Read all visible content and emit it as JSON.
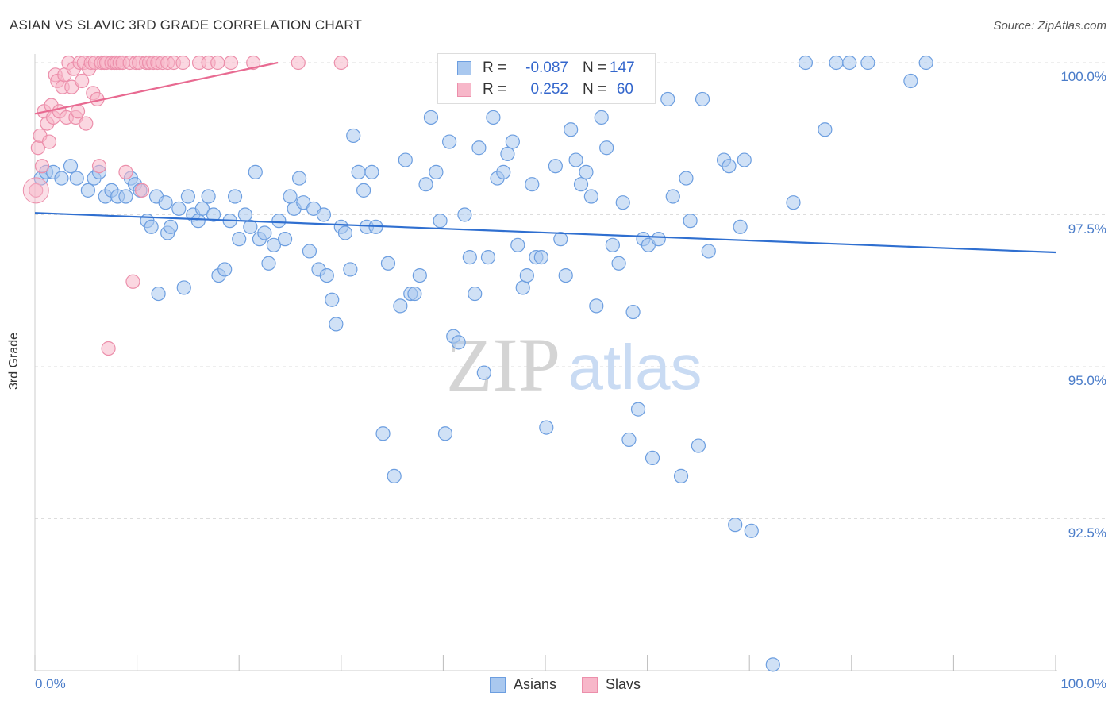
{
  "title": "ASIAN VS SLAVIC 3RD GRADE CORRELATION CHART",
  "source": "Source: ZipAtlas.com",
  "watermark": {
    "zip": "ZIP",
    "atlas": "atlas"
  },
  "colors": {
    "asian_fill": "#a9c8ef",
    "asian_stroke": "#6c9ee0",
    "asian_line": "#2f6fd0",
    "slav_fill": "#f7b7c9",
    "slav_stroke": "#ec8fab",
    "slav_line": "#e86a91",
    "grid": "#dddddd",
    "tick_text": "#4a7cc9"
  },
  "legend": {
    "rows": [
      {
        "r_label": "R =",
        "r_value": "-0.087",
        "n_label": "N =",
        "n_value": "147"
      },
      {
        "r_label": "R =",
        "r_value": "0.252",
        "n_label": "N =",
        "n_value": "60"
      }
    ]
  },
  "bottom_legend": [
    "Asians",
    "Slavs"
  ],
  "chart_data": {
    "type": "scatter",
    "title": "ASIAN VS SLAVIC 3RD GRADE CORRELATION CHART",
    "xlabel": "",
    "ylabel": "3rd Grade",
    "xlim": [
      0,
      100
    ],
    "ylim": [
      90.0,
      100.4
    ],
    "x_tick_labels": [
      "0.0%",
      "100.0%"
    ],
    "y_ticks": [
      92.5,
      95.0,
      97.5,
      100.0
    ],
    "y_tick_labels": [
      "92.5%",
      "95.0%",
      "97.5%",
      "100.0%"
    ],
    "grid": "horizontal dashed",
    "legend_position": "top-center",
    "series": [
      {
        "name": "Asians",
        "r": -0.087,
        "n": 147,
        "trend": [
          [
            0,
            97.53
          ],
          [
            100,
            96.88
          ]
        ],
        "points": [
          [
            0.6,
            98.1
          ],
          [
            1.1,
            98.2
          ],
          [
            1.8,
            98.2
          ],
          [
            2.6,
            98.1
          ],
          [
            3.5,
            98.3
          ],
          [
            4.1,
            98.1
          ],
          [
            5.2,
            97.9
          ],
          [
            5.8,
            98.1
          ],
          [
            6.3,
            98.2
          ],
          [
            6.9,
            97.8
          ],
          [
            7.5,
            97.9
          ],
          [
            8.1,
            97.8
          ],
          [
            8.9,
            97.8
          ],
          [
            9.4,
            98.1
          ],
          [
            9.8,
            98.0
          ],
          [
            10.3,
            97.9
          ],
          [
            11.0,
            97.4
          ],
          [
            11.4,
            97.3
          ],
          [
            11.9,
            97.8
          ],
          [
            12.1,
            96.2
          ],
          [
            12.8,
            97.7
          ],
          [
            13.0,
            97.2
          ],
          [
            13.3,
            97.3
          ],
          [
            14.1,
            97.6
          ],
          [
            14.6,
            96.3
          ],
          [
            15.0,
            97.8
          ],
          [
            15.5,
            97.5
          ],
          [
            16.0,
            97.4
          ],
          [
            16.4,
            97.6
          ],
          [
            17.0,
            97.8
          ],
          [
            17.5,
            97.5
          ],
          [
            18.0,
            96.5
          ],
          [
            18.6,
            96.6
          ],
          [
            19.1,
            97.4
          ],
          [
            19.6,
            97.8
          ],
          [
            20.0,
            97.1
          ],
          [
            20.6,
            97.5
          ],
          [
            21.1,
            97.3
          ],
          [
            21.6,
            98.2
          ],
          [
            22.0,
            97.1
          ],
          [
            22.5,
            97.2
          ],
          [
            22.9,
            96.7
          ],
          [
            23.4,
            97.0
          ],
          [
            23.9,
            97.4
          ],
          [
            24.5,
            97.1
          ],
          [
            25.0,
            97.8
          ],
          [
            25.4,
            97.6
          ],
          [
            25.9,
            98.1
          ],
          [
            26.3,
            97.7
          ],
          [
            26.9,
            96.9
          ],
          [
            27.3,
            97.6
          ],
          [
            27.8,
            96.6
          ],
          [
            28.3,
            97.5
          ],
          [
            28.6,
            96.5
          ],
          [
            29.1,
            96.1
          ],
          [
            29.5,
            95.7
          ],
          [
            30.0,
            97.3
          ],
          [
            30.4,
            97.2
          ],
          [
            30.9,
            96.6
          ],
          [
            31.2,
            98.8
          ],
          [
            31.7,
            98.2
          ],
          [
            32.2,
            97.9
          ],
          [
            32.5,
            97.3
          ],
          [
            33.0,
            98.2
          ],
          [
            33.4,
            97.3
          ],
          [
            34.1,
            93.9
          ],
          [
            34.6,
            96.7
          ],
          [
            35.2,
            93.2
          ],
          [
            35.8,
            96.0
          ],
          [
            36.3,
            98.4
          ],
          [
            36.8,
            96.2
          ],
          [
            37.2,
            96.2
          ],
          [
            37.7,
            96.5
          ],
          [
            38.3,
            98.0
          ],
          [
            38.8,
            99.1
          ],
          [
            39.3,
            98.2
          ],
          [
            39.7,
            97.4
          ],
          [
            40.2,
            93.9
          ],
          [
            40.6,
            98.7
          ],
          [
            41.0,
            95.5
          ],
          [
            41.5,
            95.4
          ],
          [
            42.1,
            97.5
          ],
          [
            42.6,
            96.8
          ],
          [
            43.1,
            96.2
          ],
          [
            43.5,
            98.6
          ],
          [
            44.0,
            94.9
          ],
          [
            44.4,
            96.8
          ],
          [
            44.9,
            99.1
          ],
          [
            45.3,
            98.1
          ],
          [
            45.9,
            98.2
          ],
          [
            46.3,
            98.5
          ],
          [
            46.8,
            98.7
          ],
          [
            47.3,
            97.0
          ],
          [
            47.8,
            96.3
          ],
          [
            48.2,
            96.5
          ],
          [
            48.7,
            98.0
          ],
          [
            49.1,
            96.8
          ],
          [
            49.6,
            96.8
          ],
          [
            50.1,
            94.0
          ],
          [
            51.0,
            98.3
          ],
          [
            51.5,
            97.1
          ],
          [
            52.0,
            96.5
          ],
          [
            52.5,
            98.9
          ],
          [
            53.0,
            98.4
          ],
          [
            53.5,
            98.0
          ],
          [
            54.0,
            98.2
          ],
          [
            54.5,
            97.8
          ],
          [
            55.0,
            96.0
          ],
          [
            55.5,
            99.1
          ],
          [
            56.0,
            98.6
          ],
          [
            56.6,
            97.0
          ],
          [
            57.2,
            96.7
          ],
          [
            57.6,
            97.7
          ],
          [
            58.2,
            93.8
          ],
          [
            58.6,
            95.9
          ],
          [
            59.1,
            94.3
          ],
          [
            59.6,
            97.1
          ],
          [
            60.1,
            97.0
          ],
          [
            60.5,
            93.5
          ],
          [
            61.1,
            97.1
          ],
          [
            62.0,
            99.4
          ],
          [
            62.5,
            97.8
          ],
          [
            63.3,
            93.2
          ],
          [
            63.8,
            98.1
          ],
          [
            64.2,
            97.4
          ],
          [
            65.0,
            93.7
          ],
          [
            65.4,
            99.4
          ],
          [
            66.0,
            96.9
          ],
          [
            67.5,
            98.4
          ],
          [
            68.0,
            98.3
          ],
          [
            68.6,
            92.4
          ],
          [
            69.1,
            97.3
          ],
          [
            69.5,
            98.4
          ],
          [
            70.2,
            92.3
          ],
          [
            72.3,
            90.1
          ],
          [
            74.3,
            97.7
          ],
          [
            77.4,
            98.9
          ],
          [
            75.5,
            100.0
          ],
          [
            78.5,
            100.0
          ],
          [
            79.8,
            100.0
          ],
          [
            81.6,
            100.0
          ],
          [
            85.8,
            99.7
          ],
          [
            87.3,
            100.0
          ]
        ]
      },
      {
        "name": "Slavs",
        "r": 0.252,
        "n": 60,
        "trend": [
          [
            0,
            99.16
          ],
          [
            23.8,
            100.0
          ]
        ],
        "points": [
          [
            0.1,
            97.9
          ],
          [
            0.3,
            98.6
          ],
          [
            0.5,
            98.8
          ],
          [
            0.7,
            98.3
          ],
          [
            0.9,
            99.2
          ],
          [
            1.2,
            99.0
          ],
          [
            1.4,
            98.7
          ],
          [
            1.6,
            99.3
          ],
          [
            1.8,
            99.1
          ],
          [
            2.0,
            99.8
          ],
          [
            2.2,
            99.7
          ],
          [
            2.4,
            99.2
          ],
          [
            2.7,
            99.6
          ],
          [
            2.9,
            99.8
          ],
          [
            3.1,
            99.1
          ],
          [
            3.3,
            100.0
          ],
          [
            3.6,
            99.6
          ],
          [
            3.8,
            99.9
          ],
          [
            4.0,
            99.1
          ],
          [
            4.2,
            99.2
          ],
          [
            4.4,
            100.0
          ],
          [
            4.6,
            99.7
          ],
          [
            4.8,
            100.0
          ],
          [
            5.0,
            99.0
          ],
          [
            5.3,
            99.9
          ],
          [
            5.5,
            100.0
          ],
          [
            5.7,
            99.5
          ],
          [
            5.9,
            100.0
          ],
          [
            6.1,
            99.4
          ],
          [
            6.3,
            98.3
          ],
          [
            6.5,
            100.0
          ],
          [
            6.8,
            100.0
          ],
          [
            7.0,
            100.0
          ],
          [
            7.2,
            95.3
          ],
          [
            7.5,
            100.0
          ],
          [
            7.8,
            100.0
          ],
          [
            8.0,
            100.0
          ],
          [
            8.3,
            100.0
          ],
          [
            8.6,
            100.0
          ],
          [
            8.9,
            98.2
          ],
          [
            9.3,
            100.0
          ],
          [
            9.6,
            96.4
          ],
          [
            9.9,
            100.0
          ],
          [
            10.2,
            100.0
          ],
          [
            10.5,
            97.9
          ],
          [
            10.9,
            100.0
          ],
          [
            11.2,
            100.0
          ],
          [
            11.6,
            100.0
          ],
          [
            12.0,
            100.0
          ],
          [
            12.5,
            100.0
          ],
          [
            13.0,
            100.0
          ],
          [
            13.6,
            100.0
          ],
          [
            14.5,
            100.0
          ],
          [
            16.1,
            100.0
          ],
          [
            17.0,
            100.0
          ],
          [
            17.9,
            100.0
          ],
          [
            19.2,
            100.0
          ],
          [
            21.4,
            100.0
          ],
          [
            25.8,
            100.0
          ],
          [
            30.0,
            100.0
          ]
        ]
      }
    ]
  }
}
